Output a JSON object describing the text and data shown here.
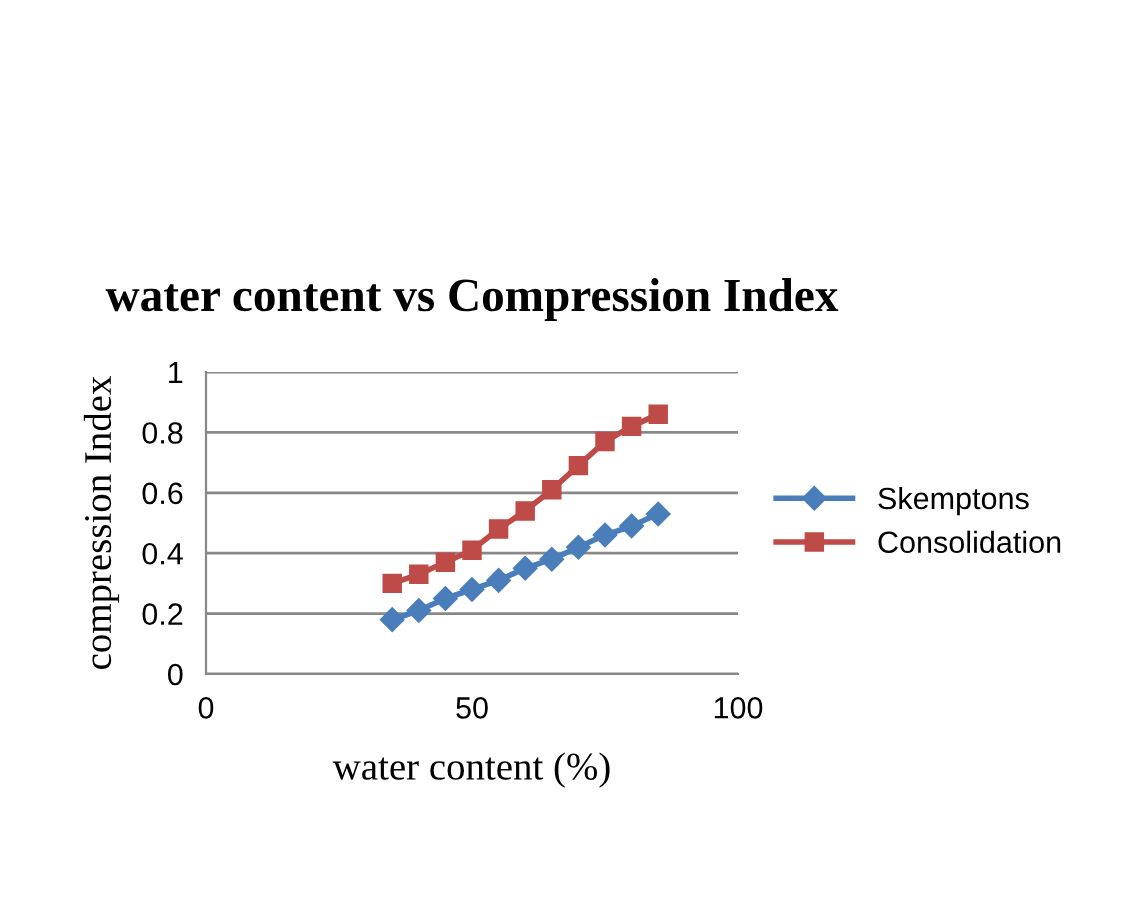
{
  "chart_data": {
    "type": "line",
    "title": "water content vs Compression Index",
    "xlabel": "water content (%)",
    "ylabel": "compression Index",
    "x": [
      35,
      40,
      45,
      50,
      55,
      60,
      65,
      70,
      75,
      80,
      85
    ],
    "series": [
      {
        "name": "Skemptons",
        "color": "#4a7ebb",
        "marker": "diamond",
        "values": [
          0.18,
          0.21,
          0.25,
          0.28,
          0.31,
          0.35,
          0.38,
          0.42,
          0.46,
          0.49,
          0.53
        ]
      },
      {
        "name": "Consolidation",
        "color": "#be4b48",
        "marker": "square",
        "values": [
          0.3,
          0.33,
          0.37,
          0.41,
          0.48,
          0.54,
          0.61,
          0.69,
          0.77,
          0.82,
          0.86
        ]
      }
    ],
    "xlim": [
      0,
      100
    ],
    "xticks": [
      0,
      50,
      100
    ],
    "ylim": [
      0,
      1
    ],
    "yticks": [
      0,
      0.2,
      0.4,
      0.6,
      0.8,
      1
    ],
    "grid": "y",
    "legend": "right"
  }
}
